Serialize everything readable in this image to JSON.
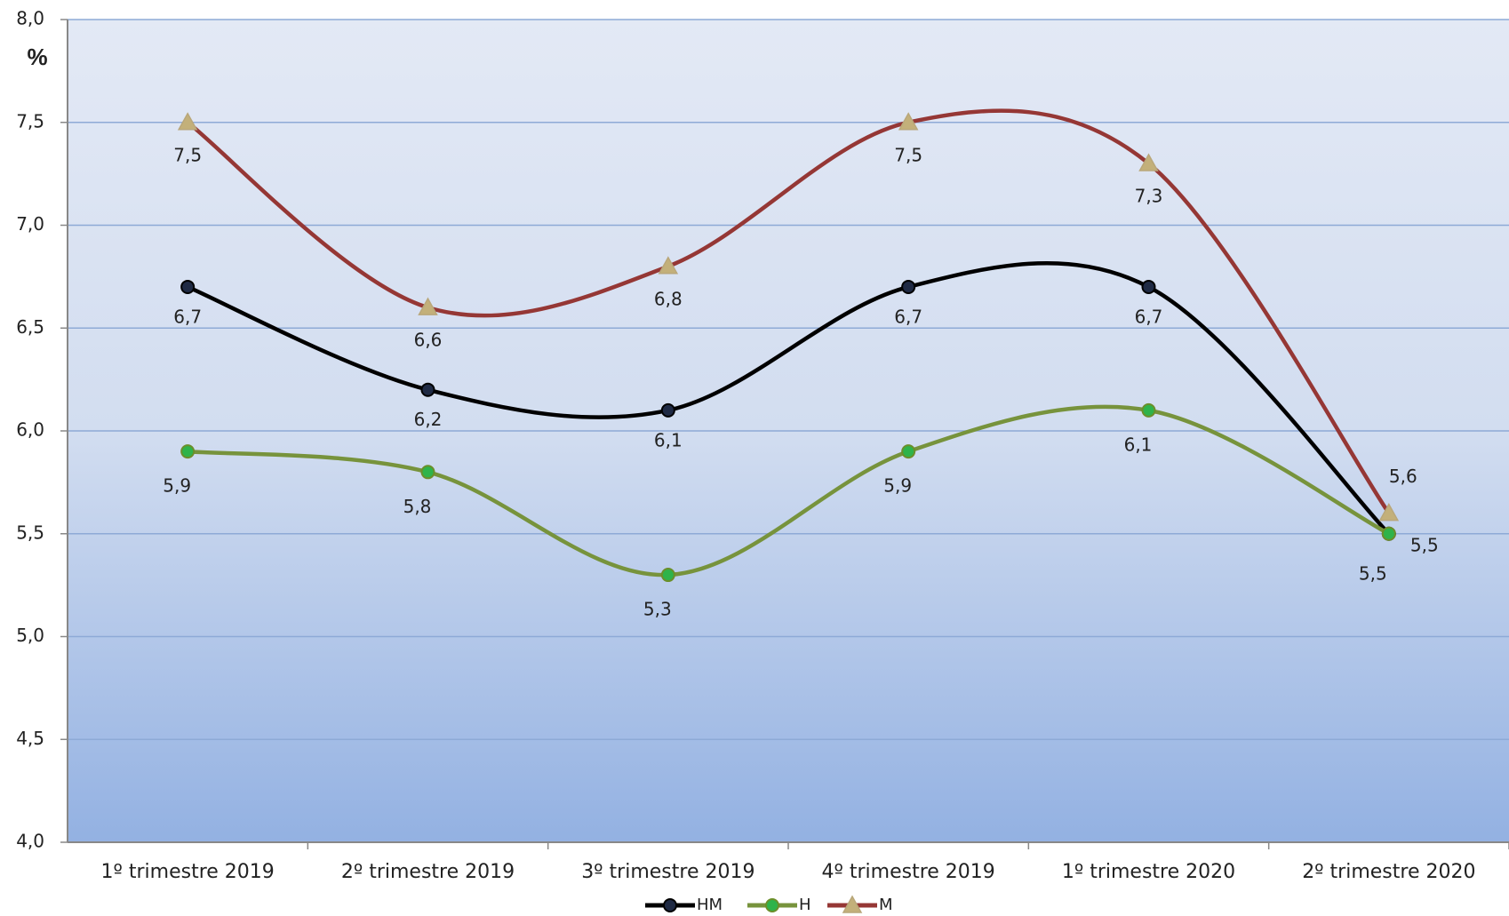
{
  "chart_data": {
    "type": "line",
    "y_label": "%",
    "categories": [
      "1º trimestre 2019",
      "2º trimestre 2019",
      "3º trimestre 2019",
      "4º trimestre 2019",
      "1º trimestre 2020",
      "2º trimestre 2020"
    ],
    "series": [
      {
        "name": "HM",
        "color": "#000000",
        "marker_color": "#1f2a44",
        "marker": "circle",
        "values": [
          6.7,
          6.2,
          6.1,
          6.7,
          6.7,
          5.5
        ],
        "value_labels": [
          "6,7",
          "6,2",
          "6,1",
          "6,7",
          "6,7",
          "5,5"
        ]
      },
      {
        "name": "H",
        "color": "#77933c",
        "marker_color": "#2fb34a",
        "marker": "circle",
        "values": [
          5.9,
          5.8,
          5.3,
          5.9,
          6.1,
          5.5
        ],
        "value_labels": [
          "5,9",
          "5,8",
          "5,3",
          "5,9",
          "6,1",
          "5,5"
        ]
      },
      {
        "name": "M",
        "color": "#953735",
        "marker_color": "#c3b07a",
        "marker": "triangle",
        "values": [
          7.5,
          6.6,
          6.8,
          7.5,
          7.3,
          5.6
        ],
        "value_labels": [
          "7,5",
          "6,6",
          "6,8",
          "7,5",
          "7,3",
          "5,6"
        ]
      }
    ],
    "ylim": [
      4,
      8
    ],
    "yticks": [
      {
        "value": 4,
        "label": "4,0"
      },
      {
        "value": 4.5,
        "label": "4,5"
      },
      {
        "value": 5,
        "label": "5,0"
      },
      {
        "value": 5.5,
        "label": "5,5"
      },
      {
        "value": 6,
        "label": "6,0"
      },
      {
        "value": 6.5,
        "label": "6,5"
      },
      {
        "value": 7,
        "label": "7,0"
      },
      {
        "value": 7.5,
        "label": "7,5"
      },
      {
        "value": 8,
        "label": "8,0"
      }
    ],
    "grid": true,
    "smooth": true,
    "legend": "bottom"
  }
}
